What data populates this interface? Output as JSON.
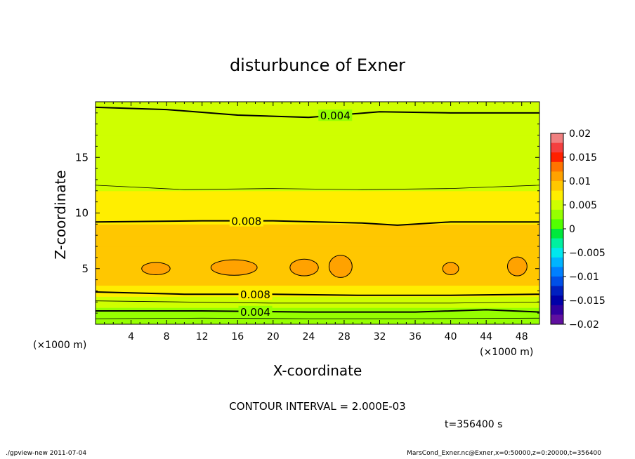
{
  "chart_data": {
    "type": "heatmap",
    "title": "disturbunce of Exner",
    "xlabel": "X-coordinate",
    "ylabel": "Z-coordinate",
    "x_unit_left": "(×1000 m)",
    "x_unit_right": "(×1000 m)",
    "xlim": [
      0,
      50
    ],
    "ylim": [
      0,
      20
    ],
    "x_ticks": [
      4,
      8,
      12,
      16,
      20,
      24,
      28,
      32,
      36,
      40,
      44,
      48
    ],
    "y_ticks": [
      5,
      10,
      15
    ],
    "contour_interval_text": "CONTOUR INTERVAL = 2.000E-03",
    "time_text": "t=356400 s",
    "colorbar": {
      "min": -0.02,
      "max": 0.02,
      "labels": [
        "0.02",
        "0.015",
        "0.01",
        "0.005",
        "0",
        "−0.005",
        "−0.01",
        "−0.015",
        "−0.02"
      ],
      "colors": [
        "#f08080",
        "#f44040",
        "#ff2000",
        "#ff7400",
        "#ffa200",
        "#ffc700",
        "#ffee00",
        "#cfff00",
        "#96ff00",
        "#52ff00",
        "#00e83c",
        "#00f0a0",
        "#00e8ee",
        "#00b4ff",
        "#0080ff",
        "#0050e8",
        "#0020c0",
        "#0000a8",
        "#3000a0",
        "#6010a0"
      ]
    },
    "vertical_profile": [
      {
        "z": 0.0,
        "value": 0.0045
      },
      {
        "z": 0.5,
        "value": 0.003
      },
      {
        "z": 1.0,
        "value": 0.0035
      },
      {
        "z": 1.5,
        "value": 0.0045
      },
      {
        "z": 2.0,
        "value": 0.0055
      },
      {
        "z": 2.5,
        "value": 0.0065
      },
      {
        "z": 3.0,
        "value": 0.0075
      },
      {
        "z": 3.5,
        "value": 0.0085
      },
      {
        "z": 4.0,
        "value": 0.0095
      },
      {
        "z": 5.0,
        "value": 0.0098
      },
      {
        "z": 6.0,
        "value": 0.0097
      },
      {
        "z": 7.0,
        "value": 0.0093
      },
      {
        "z": 8.0,
        "value": 0.0085
      },
      {
        "z": 9.0,
        "value": 0.0078
      },
      {
        "z": 10.0,
        "value": 0.0072
      },
      {
        "z": 11.0,
        "value": 0.0066
      },
      {
        "z": 12.0,
        "value": 0.0061
      },
      {
        "z": 13.0,
        "value": 0.0057
      },
      {
        "z": 14.0,
        "value": 0.0053
      },
      {
        "z": 15.0,
        "value": 0.005
      },
      {
        "z": 16.0,
        "value": 0.0048
      },
      {
        "z": 17.0,
        "value": 0.0045
      },
      {
        "z": 18.0,
        "value": 0.0043
      },
      {
        "z": 19.0,
        "value": 0.0041
      },
      {
        "z": 20.0,
        "value": 0.004
      }
    ],
    "contours": [
      {
        "value": 0.004,
        "label": "0.004",
        "label_x": 27,
        "points": [
          [
            0,
            19.5
          ],
          [
            8,
            19.3
          ],
          [
            16,
            18.8
          ],
          [
            24,
            18.6
          ],
          [
            32,
            19.1
          ],
          [
            40,
            19.0
          ],
          [
            50,
            19.0
          ]
        ]
      },
      {
        "value": 0.006,
        "label": "",
        "points": [
          [
            0,
            12.5
          ],
          [
            10,
            12.1
          ],
          [
            20,
            12.2
          ],
          [
            30,
            12.1
          ],
          [
            40,
            12.2
          ],
          [
            50,
            12.5
          ]
        ]
      },
      {
        "value": 0.008,
        "label": "0.008",
        "label_x": 17,
        "points": [
          [
            0,
            9.2
          ],
          [
            12,
            9.3
          ],
          [
            20,
            9.3
          ],
          [
            30,
            9.1
          ],
          [
            34,
            8.9
          ],
          [
            40,
            9.2
          ],
          [
            50,
            9.2
          ]
        ]
      },
      {
        "value": 0.008,
        "label": "0.008",
        "label_x": 18,
        "points": [
          [
            0,
            2.9
          ],
          [
            10,
            2.7
          ],
          [
            20,
            2.7
          ],
          [
            30,
            2.6
          ],
          [
            40,
            2.6
          ],
          [
            50,
            2.7
          ]
        ]
      },
      {
        "value": 0.006,
        "label": "",
        "points": [
          [
            0,
            2.1
          ],
          [
            10,
            2.0
          ],
          [
            20,
            1.9
          ],
          [
            30,
            1.9
          ],
          [
            40,
            1.9
          ],
          [
            50,
            2.0
          ]
        ]
      },
      {
        "value": 0.004,
        "label": "0.004",
        "label_x": 18,
        "points": [
          [
            0,
            1.2
          ],
          [
            12,
            1.2
          ],
          [
            24,
            1.1
          ],
          [
            36,
            1.1
          ],
          [
            44,
            1.3
          ],
          [
            50,
            1.1
          ]
        ]
      },
      {
        "value": 0.006,
        "label": "",
        "points": [
          [
            0,
            0.5
          ],
          [
            12,
            0.55
          ],
          [
            24,
            0.5
          ],
          [
            36,
            0.5
          ],
          [
            50,
            0.55
          ]
        ]
      }
    ],
    "cells": [
      {
        "x": 6.8,
        "z": 5.0,
        "rx": 1.6,
        "rz": 0.55,
        "value": 0.01
      },
      {
        "x": 15.6,
        "z": 5.1,
        "rx": 2.6,
        "rz": 0.7,
        "value": 0.01
      },
      {
        "x": 23.5,
        "z": 5.1,
        "rx": 1.6,
        "rz": 0.75,
        "value": 0.01
      },
      {
        "x": 27.6,
        "z": 5.2,
        "rx": 1.3,
        "rz": 1.0,
        "value": 0.01
      },
      {
        "x": 40.0,
        "z": 5.0,
        "rx": 0.9,
        "rz": 0.55,
        "value": 0.01
      },
      {
        "x": 47.5,
        "z": 5.2,
        "rx": 1.1,
        "rz": 0.85,
        "value": 0.01
      }
    ]
  },
  "footer": {
    "left": "./gpview-new  2011-07-04",
    "right": "MarsCond_Exner.nc@Exner,x=0:50000,z=0:20000,t=356400"
  }
}
